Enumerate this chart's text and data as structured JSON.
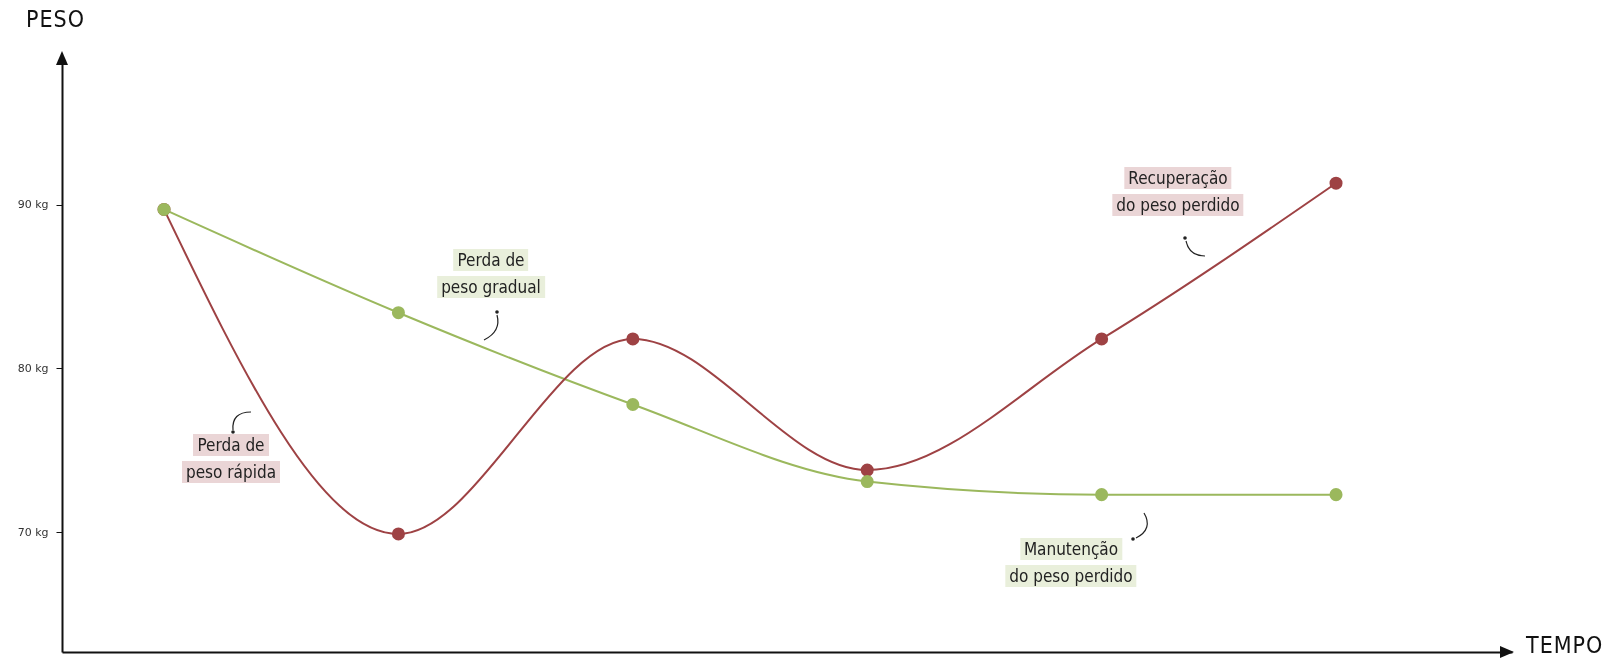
{
  "chart_data": {
    "type": "line",
    "xlabel": "TEMPO",
    "ylabel": "PESO",
    "categories": [
      null,
      null,
      null,
      null,
      null,
      null
    ],
    "series": [
      {
        "color": "#9bb85d",
        "values": [
          89.7,
          83.4,
          77.8,
          73.1,
          72.3,
          72.3
        ]
      },
      {
        "color": "#9e4244",
        "values": [
          89.7,
          69.9,
          81.8,
          73.8,
          81.8,
          91.3
        ]
      }
    ],
    "ylim": [
      62.7,
      99
    ],
    "yticks": [
      {
        "value": 70,
        "label": "70 kg"
      },
      {
        "value": 80,
        "label": "80 kg"
      },
      {
        "value": 90,
        "label": "90 kg"
      }
    ],
    "tick_labels": "y",
    "marker": "circle",
    "line_style": "solid",
    "annotations": [
      "Perda de\npeso rápida",
      "Perda de\npeso gradual",
      "Recuperação\ndo peso perdido",
      "Manutenção\ndo peso perdido"
    ]
  }
}
